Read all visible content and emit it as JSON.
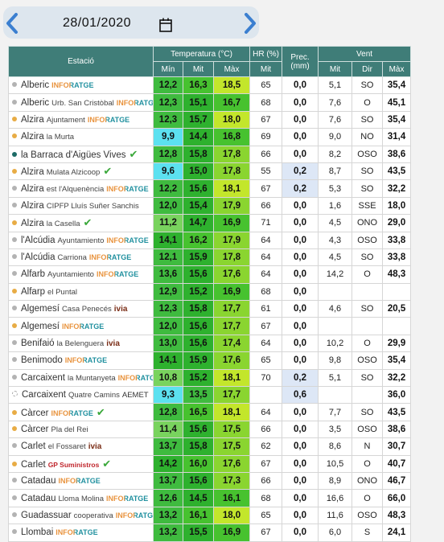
{
  "date": "28/01/2020",
  "table": {
    "headers": {
      "station": "Estació",
      "temperature": "Temperatura (°C)",
      "humidity": "HR (%)",
      "precipitation": "Prec. (mm)",
      "wind": "Vent",
      "sub": {
        "t_min": "Mín",
        "t_mit": "Mit",
        "t_max": "Màx",
        "hr": "Mit",
        "wind": "Mit",
        "dir": "Dir",
        "gust": "Màx"
      }
    },
    "rows": [
      {
        "name": "Alberic",
        "network": "INFORATGE",
        "dot": "#b3b3b3",
        "t_min": "12,2",
        "t_mit": "16,3",
        "t_max": "18,5",
        "hr": "65",
        "prec": "0,0",
        "wind": "5,1",
        "dir": "SO",
        "gust": "35,4"
      },
      {
        "name": "Alberic",
        "place": "Urb. San Cristòbal",
        "network": "INFORATGE",
        "dot": "#b3b3b3",
        "t_min": "12,3",
        "t_mit": "15,1",
        "t_max": "16,7",
        "hr": "68",
        "prec": "0,0",
        "wind": "7,6",
        "dir": "O",
        "gust": "45,1"
      },
      {
        "name": "Alzira",
        "place": "Ajuntament",
        "network": "INFORATGE",
        "dot": "#e8ac45",
        "t_min": "12,3",
        "t_mit": "15,7",
        "t_max": "18,0",
        "hr": "67",
        "prec": "0,0",
        "wind": "7,6",
        "dir": "SO",
        "gust": "35,4"
      },
      {
        "name": "Alzira",
        "place": "la Murta",
        "dot": "#e8ac45",
        "t_min": "9,9",
        "t_mit": "14,4",
        "t_max": "16,8",
        "hr": "69",
        "prec": "0,0",
        "wind": "9,0",
        "dir": "NO",
        "gust": "31,4"
      },
      {
        "name": "la Barraca d'Aigües Vives",
        "verified": true,
        "dot": "#1d6b66",
        "t_min": "12,8",
        "t_mit": "15,8",
        "t_max": "17,8",
        "hr": "66",
        "prec": "0,0",
        "wind": "8,2",
        "dir": "OSO",
        "gust": "38,6"
      },
      {
        "name": "Alzira",
        "place": "Mulata Alzicoop",
        "verified": true,
        "dot": "#e8ac45",
        "t_min": "9,6",
        "t_mit": "15,0",
        "t_max": "17,8",
        "hr": "55",
        "prec": "0,2",
        "wind": "8,7",
        "dir": "SO",
        "gust": "43,5"
      },
      {
        "name": "Alzira",
        "place": "est l'Alquenència",
        "network": "INFORATGE",
        "dot": "#b3b3b3",
        "t_min": "12,2",
        "t_mit": "15,6",
        "t_max": "18,1",
        "hr": "67",
        "prec": "0,2",
        "wind": "5,3",
        "dir": "SO",
        "gust": "32,2"
      },
      {
        "name": "Alzira",
        "place": "CIPFP Lluís Suñer Sanchis",
        "dot": "#b3b3b3",
        "t_min": "12,0",
        "t_mit": "15,4",
        "t_max": "17,9",
        "hr": "66",
        "prec": "0,0",
        "wind": "1,6",
        "dir": "SSE",
        "gust": "18,0"
      },
      {
        "name": "Alzira",
        "place": "la Casella",
        "verified": true,
        "dot": "#e8ac45",
        "t_min": "11,2",
        "t_mit": "14,7",
        "t_max": "16,9",
        "hr": "71",
        "prec": "0,0",
        "wind": "4,5",
        "dir": "ONO",
        "gust": "29,0"
      },
      {
        "name": "l'Alcúdia",
        "place": "Ayuntamiento",
        "network": "INFORATGE",
        "dot": "#b3b3b3",
        "t_min": "14,1",
        "t_mit": "16,2",
        "t_max": "17,9",
        "hr": "64",
        "prec": "0,0",
        "wind": "4,3",
        "dir": "OSO",
        "gust": "33,8"
      },
      {
        "name": "l'Alcúdia",
        "place": "Carriona",
        "network": "INFORATGE",
        "dot": "#b3b3b3",
        "t_min": "12,1",
        "t_mit": "15,9",
        "t_max": "17,8",
        "hr": "64",
        "prec": "0,0",
        "wind": "4,5",
        "dir": "SO",
        "gust": "33,8"
      },
      {
        "name": "Alfarb",
        "place": "Ayuntamiento",
        "network": "INFORATGE",
        "dot": "#b3b3b3",
        "t_min": "13,6",
        "t_mit": "15,6",
        "t_max": "17,6",
        "hr": "64",
        "prec": "0,0",
        "wind": "14,2",
        "dir": "O",
        "gust": "48,3"
      },
      {
        "name": "Alfarp",
        "place": "el Puntal",
        "dot": "#e8ac45",
        "t_min": "12,9",
        "t_mit": "15,2",
        "t_max": "16,9",
        "hr": "68",
        "prec": "0,0",
        "wind": null,
        "dir": null,
        "gust": null
      },
      {
        "name": "Algemesí",
        "place": "Casa Penecés",
        "network": "ivia",
        "dot": "#b3b3b3",
        "t_min": "12,3",
        "t_mit": "15,8",
        "t_max": "17,7",
        "hr": "61",
        "prec": "0,0",
        "wind": "4,6",
        "dir": "SO",
        "gust": "20,5"
      },
      {
        "name": "Algemesí",
        "network": "INFORATGE",
        "dot": "#e8ac45",
        "t_min": "12,0",
        "t_mit": "15,6",
        "t_max": "17,7",
        "hr": "67",
        "prec": "0,0",
        "wind": null,
        "dir": null,
        "gust": null
      },
      {
        "name": "Benifaió",
        "place": "la Belenguera",
        "network": "ivia",
        "dot": "#b3b3b3",
        "t_min": "13,0",
        "t_mit": "15,6",
        "t_max": "17,4",
        "hr": "64",
        "prec": "0,0",
        "wind": "10,2",
        "dir": "O",
        "gust": "29,9"
      },
      {
        "name": "Benimodo",
        "network": "INFORATGE",
        "dot": "#b3b3b3",
        "t_min": "14,1",
        "t_mit": "15,9",
        "t_max": "17,6",
        "hr": "65",
        "prec": "0,0",
        "wind": "9,8",
        "dir": "OSO",
        "gust": "35,4"
      },
      {
        "name": "Carcaixent",
        "place": "la Muntanyeta",
        "network": "INFORATGE",
        "dot": "#b3b3b3",
        "t_min": "10,8",
        "t_mit": "15,2",
        "t_max": "18,1",
        "hr": "70",
        "prec": "0,2",
        "wind": "5,1",
        "dir": "SO",
        "gust": "32,2"
      },
      {
        "name": "Carcaixent",
        "place": "Quatre Camins",
        "network": "AEMET",
        "dot": "none",
        "t_min": "9,3",
        "t_mit": "13,5",
        "t_max": "17,7",
        "hr": null,
        "prec": "0,6",
        "wind": null,
        "dir": null,
        "gust": "36,0"
      },
      {
        "name": "Càrcer",
        "network": "INFORATGE",
        "verified": true,
        "dot": "#e8ac45",
        "t_min": "12,8",
        "t_mit": "16,5",
        "t_max": "18,1",
        "hr": "64",
        "prec": "0,0",
        "wind": "7,7",
        "dir": "SO",
        "gust": "43,5"
      },
      {
        "name": "Càrcer",
        "place": "Pla del Rei",
        "dot": "#e8ac45",
        "t_min": "11,4",
        "t_mit": "15,6",
        "t_max": "17,5",
        "hr": "66",
        "prec": "0,0",
        "wind": "3,5",
        "dir": "OSO",
        "gust": "38,6"
      },
      {
        "name": "Carlet",
        "place": "el Fossaret",
        "network": "ivia",
        "dot": "#b3b3b3",
        "t_min": "13,7",
        "t_mit": "15,8",
        "t_max": "17,5",
        "hr": "62",
        "prec": "0,0",
        "wind": "8,6",
        "dir": "N",
        "gust": "30,7"
      },
      {
        "name": "Carlet",
        "network": "GP Suministros",
        "verified": true,
        "dot": "#e8ac45",
        "t_min": "14,2",
        "t_mit": "16,0",
        "t_max": "17,6",
        "hr": "67",
        "prec": "0,0",
        "wind": "10,5",
        "dir": "O",
        "gust": "40,7"
      },
      {
        "name": "Catadau",
        "network": "INFORATGE",
        "dot": "#b3b3b3",
        "t_min": "13,7",
        "t_mit": "15,6",
        "t_max": "17,3",
        "hr": "66",
        "prec": "0,0",
        "wind": "8,9",
        "dir": "ONO",
        "gust": "46,7"
      },
      {
        "name": "Catadau",
        "place": "Lloma Molina",
        "network": "INFORATGE",
        "dot": "#b3b3b3",
        "t_min": "12,6",
        "t_mit": "14,5",
        "t_max": "16,1",
        "hr": "68",
        "prec": "0,0",
        "wind": "16,6",
        "dir": "O",
        "gust": "66,0"
      },
      {
        "name": "Guadassuar",
        "place": "cooperativa",
        "network": "INFORATGE",
        "dot": "#b3b3b3",
        "t_min": "13,2",
        "t_mit": "16,1",
        "t_max": "18,0",
        "hr": "65",
        "prec": "0,0",
        "wind": "11,6",
        "dir": "OSO",
        "gust": "48,3"
      },
      {
        "name": "Llombai",
        "network": "INFORATGE",
        "dot": "#b3b3b3",
        "t_min": "13,2",
        "t_mit": "15,5",
        "t_max": "16,9",
        "hr": "67",
        "prec": "0,0",
        "wind": "6,0",
        "dir": "S",
        "gust": "24,1"
      }
    ]
  }
}
